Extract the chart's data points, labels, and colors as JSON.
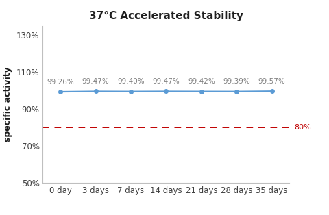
{
  "title": "37°C Accelerated Stability",
  "ylabel": "specific activity",
  "x_labels": [
    "0 day",
    "3 days",
    "7 days",
    "14 days",
    "21 days",
    "28 days",
    "35 days"
  ],
  "x_values": [
    0,
    1,
    2,
    3,
    4,
    5,
    6
  ],
  "y_values": [
    99.26,
    99.47,
    99.4,
    99.47,
    99.42,
    99.39,
    99.57
  ],
  "y_annotations": [
    "99.26%",
    "99.47%",
    "99.40%",
    "99.47%",
    "99.42%",
    "99.39%",
    "99.57%"
  ],
  "line_color": "#5B9BD5",
  "line_marker": "o",
  "line_marker_size": 4,
  "ref_line_y": 80,
  "ref_line_color": "#C00000",
  "ref_label": "80%",
  "ylim": [
    50,
    135
  ],
  "yticks": [
    50,
    70,
    90,
    110,
    130
  ],
  "ytick_labels": [
    "50%",
    "70%",
    "90%",
    "110%",
    "130%"
  ],
  "background_color": "#ffffff",
  "title_fontsize": 11,
  "axis_label_fontsize": 9,
  "tick_fontsize": 8.5,
  "annotation_fontsize": 7.5,
  "annotation_color": "#7F7F7F",
  "title_color": "#1F1F1F"
}
